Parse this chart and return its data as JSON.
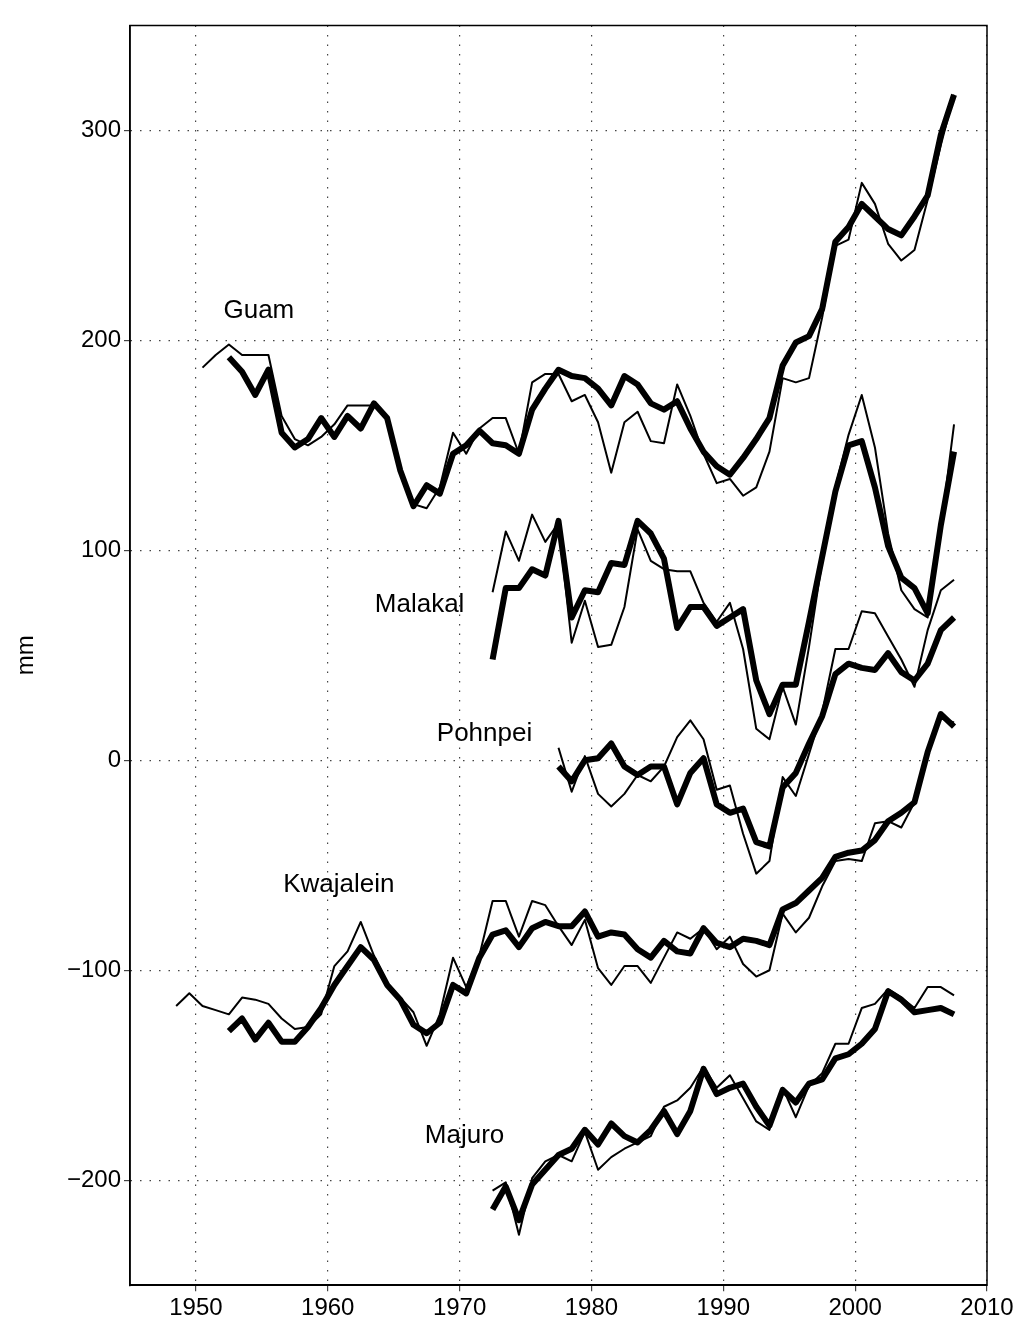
{
  "chart_data": {
    "type": "line",
    "ylabel": "mm",
    "xlim": [
      1945,
      2010
    ],
    "xticks": [
      1950,
      1960,
      1970,
      1980,
      1990,
      2000,
      2010
    ],
    "ylim": [
      -250,
      350
    ],
    "yticks": [
      {
        "value": -200,
        "label": "−200"
      },
      {
        "value": -100,
        "label": "−100"
      },
      0,
      100,
      200,
      300
    ],
    "grid": true,
    "legend": false,
    "x": [
      1948.5,
      1949.5,
      1950.5,
      1951.5,
      1952.5,
      1953.5,
      1954.5,
      1955.5,
      1956.5,
      1957.5,
      1958.5,
      1959.5,
      1960.5,
      1961.5,
      1962.5,
      1963.5,
      1964.5,
      1965.5,
      1966.5,
      1967.5,
      1968.5,
      1969.5,
      1970.5,
      1971.5,
      1972.5,
      1973.5,
      1974.5,
      1975.5,
      1976.5,
      1977.5,
      1978.5,
      1979.5,
      1980.5,
      1981.5,
      1982.5,
      1983.5,
      1984.5,
      1985.5,
      1986.5,
      1987.5,
      1988.5,
      1989.5,
      1990.5,
      1991.5,
      1992.5,
      1993.5,
      1994.5,
      1995.5,
      1996.5,
      1997.5,
      1998.5,
      1999.5,
      2000.5,
      2001.5,
      2002.5,
      2003.5,
      2004.5,
      2005.5,
      2006.5,
      2007.5
    ],
    "series": [
      {
        "color": "#000000",
        "values": [
          null,
          null,
          187,
          193,
          198,
          193,
          193,
          193,
          164,
          153,
          150,
          154,
          160,
          169,
          169,
          169,
          163,
          138,
          122,
          120,
          130,
          156,
          146,
          158,
          163,
          163,
          146,
          180,
          184,
          184,
          171,
          174,
          161,
          137,
          161,
          166,
          152,
          151,
          179,
          164,
          146,
          132,
          134,
          126,
          130,
          147,
          182,
          180,
          182,
          211,
          245,
          248,
          275,
          265,
          246,
          238,
          243,
          267,
          293,
          317
        ]
      },
      {
        "name": "Guam",
        "color": "#000000",
        "values": [
          null,
          null,
          null,
          null,
          192,
          185,
          174,
          186,
          156,
          149,
          153,
          163,
          154,
          164,
          158,
          170,
          163,
          138,
          121,
          131,
          127,
          146,
          150,
          157,
          151,
          150,
          146,
          167,
          177,
          186,
          183,
          182,
          177,
          169,
          183,
          179,
          170,
          167,
          171,
          158,
          147,
          140,
          136,
          144,
          153,
          163,
          188,
          199,
          202,
          215,
          247,
          254,
          265,
          259,
          253,
          250,
          259,
          269,
          298,
          317
        ]
      },
      {
        "color": "#000000",
        "values": [
          null,
          null,
          null,
          null,
          null,
          null,
          null,
          null,
          null,
          null,
          null,
          null,
          null,
          null,
          null,
          null,
          null,
          null,
          null,
          null,
          null,
          null,
          null,
          null,
          80,
          109,
          95,
          117,
          104,
          113,
          56,
          76,
          54,
          55,
          73,
          110,
          95,
          91,
          90,
          90,
          75,
          66,
          75,
          53,
          15,
          10,
          35,
          17,
          54,
          95,
          130,
          155,
          174,
          149,
          108,
          81,
          72,
          68,
          110,
          160
        ]
      },
      {
        "name": "Malakal",
        "color": "#000000",
        "values": [
          null,
          null,
          null,
          null,
          null,
          null,
          null,
          null,
          null,
          null,
          null,
          null,
          null,
          null,
          null,
          null,
          null,
          null,
          null,
          null,
          null,
          null,
          null,
          null,
          48,
          82,
          82,
          91,
          88,
          114,
          68,
          81,
          80,
          94,
          93,
          114,
          108,
          96,
          63,
          73,
          73,
          64,
          68,
          72,
          38,
          22,
          36,
          36,
          66,
          97,
          128,
          150,
          152,
          130,
          102,
          87,
          82,
          70,
          112,
          147
        ]
      },
      {
        "color": "#000000",
        "values": [
          null,
          null,
          null,
          null,
          null,
          null,
          null,
          null,
          null,
          null,
          null,
          null,
          null,
          null,
          null,
          null,
          null,
          null,
          null,
          null,
          null,
          null,
          null,
          null,
          null,
          null,
          null,
          null,
          null,
          6,
          -15,
          2,
          -16,
          -22,
          -16,
          -7,
          -10,
          -3,
          11,
          19,
          10,
          -14,
          -12,
          -35,
          -54,
          -48,
          -8,
          -17,
          3,
          23,
          53,
          53,
          71,
          70,
          59,
          48,
          35,
          62,
          81,
          86
        ]
      },
      {
        "name": "Pohnpei",
        "color": "#000000",
        "values": [
          null,
          null,
          null,
          null,
          null,
          null,
          null,
          null,
          null,
          null,
          null,
          null,
          null,
          null,
          null,
          null,
          null,
          null,
          null,
          null,
          null,
          null,
          null,
          null,
          null,
          null,
          null,
          null,
          null,
          -3,
          -10,
          0,
          1,
          8,
          -3,
          -7,
          -3,
          -3,
          -21,
          -6,
          1,
          -21,
          -25,
          -23,
          -39,
          -41,
          -13,
          -6,
          8,
          21,
          41,
          46,
          44,
          43,
          51,
          42,
          38,
          46,
          62,
          68
        ]
      },
      {
        "color": "#000000",
        "values": [
          -117,
          -111,
          -117,
          -119,
          -121,
          -113,
          -114,
          -116,
          -123,
          -128,
          -127,
          -121,
          -98,
          -91,
          -77,
          -93,
          -106,
          -113,
          -120,
          -136,
          -121,
          -94,
          -108,
          -93,
          -67,
          -67,
          -84,
          -67,
          -69,
          -79,
          -88,
          -76,
          -99,
          -107,
          -98,
          -98,
          -106,
          -94,
          -82,
          -85,
          -80,
          -90,
          -84,
          -97,
          -103,
          -100,
          -73,
          -82,
          -75,
          -60,
          -48,
          -47,
          -48,
          -30,
          -29,
          -32,
          -20,
          5,
          20,
          18
        ]
      },
      {
        "name": "Kwajalein",
        "color": "#000000",
        "values": [
          null,
          null,
          null,
          null,
          -129,
          -123,
          -133,
          -125,
          -134,
          -134,
          -127,
          -118,
          -107,
          -98,
          -89,
          -95,
          -107,
          -114,
          -126,
          -130,
          -125,
          -107,
          -111,
          -94,
          -83,
          -81,
          -89,
          -80,
          -77,
          -79,
          -79,
          -72,
          -84,
          -82,
          -83,
          -90,
          -94,
          -86,
          -91,
          -92,
          -80,
          -87,
          -89,
          -85,
          -86,
          -88,
          -71,
          -68,
          -62,
          -56,
          -46,
          -44,
          -43,
          -38,
          -29,
          -25,
          -20,
          4,
          22,
          16
        ]
      },
      {
        "color": "#000000",
        "values": [
          null,
          null,
          null,
          null,
          null,
          null,
          null,
          null,
          null,
          null,
          null,
          null,
          null,
          null,
          null,
          null,
          null,
          null,
          null,
          null,
          null,
          null,
          null,
          null,
          -205,
          -201,
          -226,
          -199,
          -191,
          -188,
          -191,
          -177,
          -195,
          -189,
          -185,
          -182,
          -179,
          -165,
          -162,
          -156,
          -146,
          -156,
          -150,
          -161,
          -172,
          -176,
          -156,
          -170,
          -155,
          -149,
          -135,
          -135,
          -118,
          -116,
          -109,
          -113,
          -118,
          -108,
          -108,
          -112
        ]
      },
      {
        "name": "Majuro",
        "color": "#000000",
        "values": [
          null,
          null,
          null,
          null,
          null,
          null,
          null,
          null,
          null,
          null,
          null,
          null,
          null,
          null,
          null,
          null,
          null,
          null,
          null,
          null,
          null,
          null,
          null,
          null,
          -214,
          -203,
          -219,
          -202,
          -195,
          -188,
          -185,
          -176,
          -183,
          -173,
          -179,
          -182,
          -176,
          -167,
          -178,
          -167,
          -147,
          -159,
          -156,
          -154,
          -165,
          -174,
          -157,
          -163,
          -154,
          -152,
          -142,
          -140,
          -135,
          -128,
          -110,
          -114,
          -120,
          -119,
          -118,
          -121
        ]
      }
    ]
  }
}
